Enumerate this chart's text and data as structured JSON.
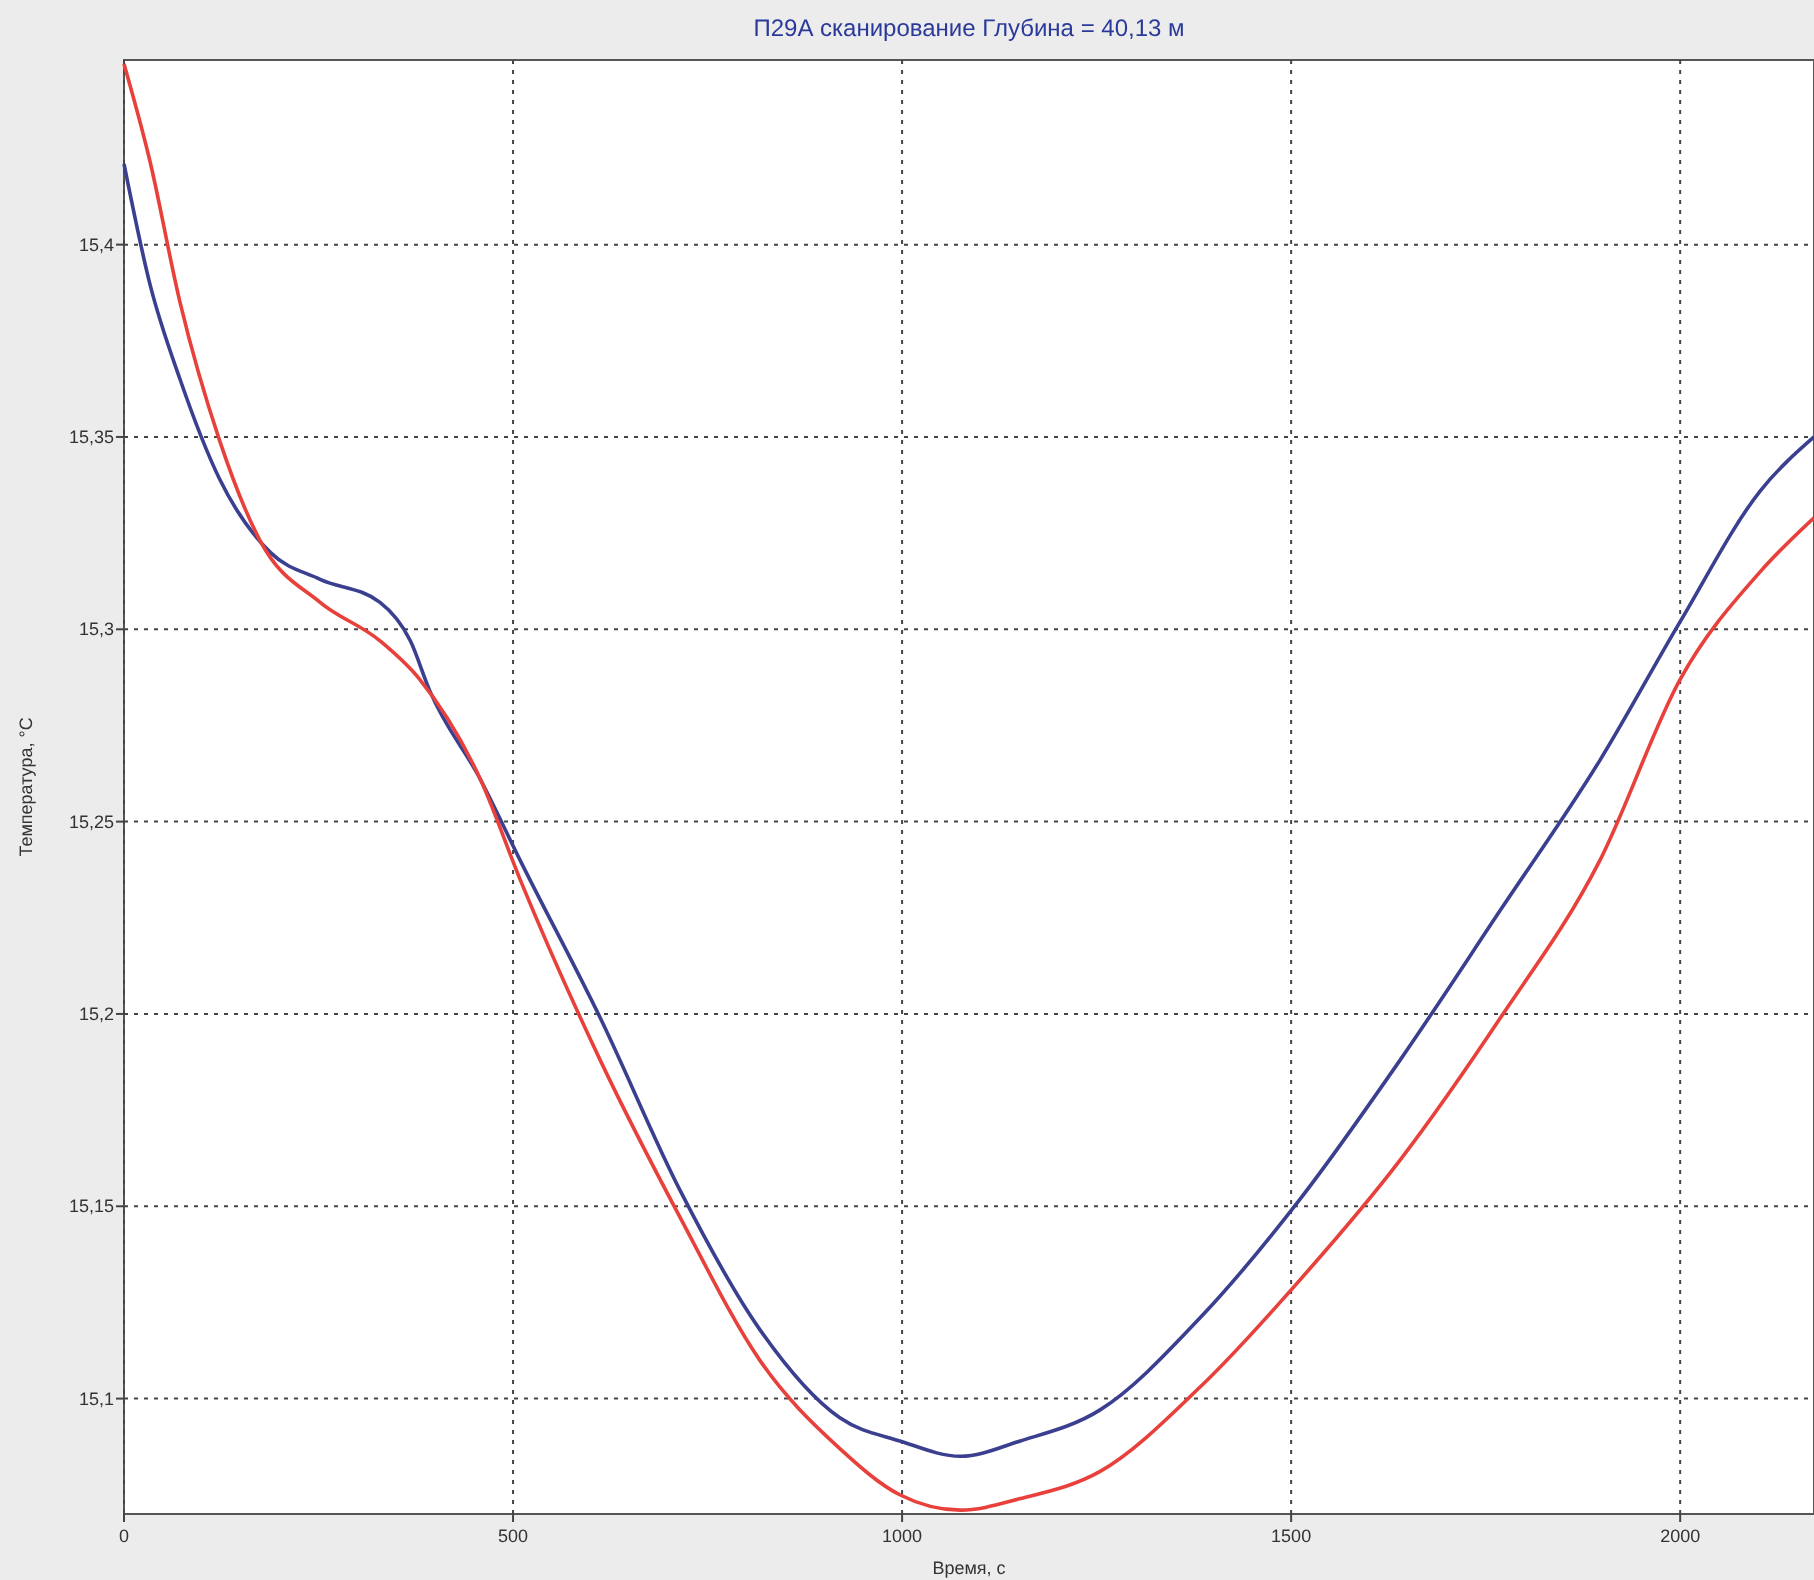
{
  "chart_data": {
    "type": "line",
    "title": "П29А сканирование  Глубина = 40,13 м",
    "xlabel": "Время, с",
    "ylabel": "Температура, °С",
    "xlim": [
      0,
      2172
    ],
    "ylim": [
      15.07,
      15.448
    ],
    "xticks": [
      0,
      500,
      1000,
      1500,
      2000
    ],
    "yticks": [
      {
        "value": 15.1,
        "label": "15,1"
      },
      {
        "value": 15.15,
        "label": "15,15"
      },
      {
        "value": 15.2,
        "label": "15,2"
      },
      {
        "value": 15.25,
        "label": "15,25"
      },
      {
        "value": 15.3,
        "label": "15,3"
      },
      {
        "value": 15.35,
        "label": "15,35"
      },
      {
        "value": 15.4,
        "label": "15,4"
      }
    ],
    "grid": true,
    "line_style": "solid",
    "marker": "none",
    "series": [
      {
        "color": "#3a3f8f",
        "x": [
          0,
          33,
          72,
          123,
          188,
          252,
          329,
          368,
          393,
          458,
          509,
          612,
          715,
          817,
          920,
          997,
          1075,
          1152,
          1254,
          1383,
          1512,
          1640,
          1769,
          1897,
          2000,
          2103,
          2172
        ],
        "values": [
          15.421,
          15.39,
          15.365,
          15.339,
          15.32,
          15.313,
          15.307,
          15.297,
          15.284,
          15.261,
          15.24,
          15.199,
          15.154,
          15.118,
          15.095,
          15.089,
          15.085,
          15.089,
          15.097,
          15.121,
          15.152,
          15.188,
          15.227,
          15.266,
          15.302,
          15.336,
          15.35
        ]
      },
      {
        "color": "#e8403a",
        "x": [
          0,
          33,
          72,
          123,
          175,
          252,
          329,
          380,
          458,
          509,
          612,
          715,
          817,
          920,
          997,
          1075,
          1152,
          1254,
          1383,
          1512,
          1640,
          1769,
          1897,
          2000,
          2103,
          2172
        ],
        "values": [
          15.447,
          15.422,
          15.385,
          15.349,
          15.323,
          15.307,
          15.297,
          15.287,
          15.261,
          15.235,
          15.188,
          15.147,
          15.11,
          15.087,
          15.075,
          15.071,
          15.074,
          15.081,
          15.103,
          15.131,
          15.162,
          15.199,
          15.24,
          15.287,
          15.315,
          15.329
        ]
      }
    ]
  }
}
